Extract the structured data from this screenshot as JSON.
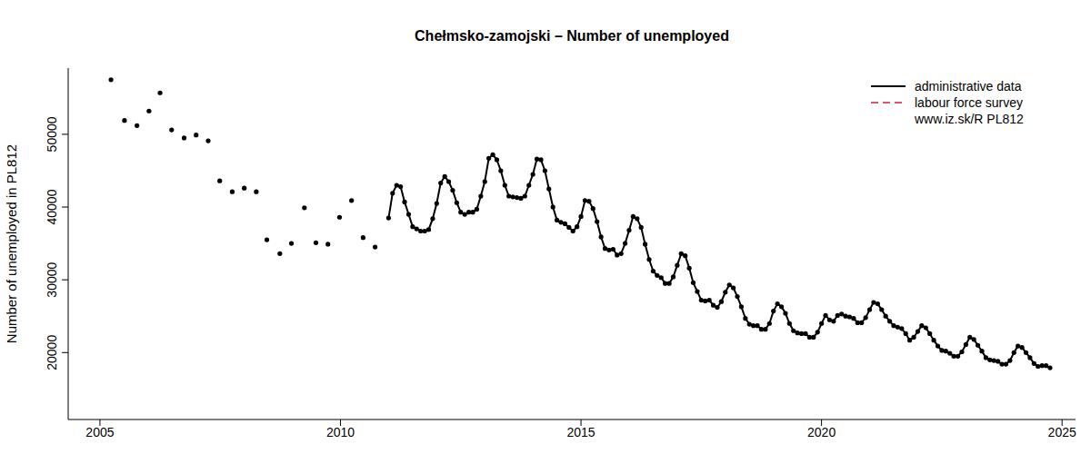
{
  "chart_data": {
    "type": "line",
    "title": "Chełmsko-zamojski – Number of unemployed",
    "y_label": "Number of unemployed in PL812",
    "annotation": "www.iz.sk/R PL812",
    "legend": "topright",
    "grid": false,
    "xlim": [
      2004.34,
      2025.28
    ],
    "xticks": [
      2005,
      2010,
      2015,
      2020,
      2025
    ],
    "ylim": [
      10800,
      59100
    ],
    "yticks": [
      20000,
      30000,
      40000,
      50000
    ],
    "x": [
      2005.23,
      2005.37,
      2005.51,
      2005.64,
      2005.77,
      2005.9,
      2006.02,
      2006.13,
      2006.25,
      2006.37,
      2006.49,
      2006.62,
      2006.75,
      2006.87,
      2007.0,
      2007.12,
      2007.25,
      2007.37,
      2007.49,
      2007.62,
      2007.75,
      2007.87,
      2008.0,
      2008.12,
      2008.25,
      2008.36,
      2008.47,
      2008.6,
      2008.74,
      2008.86,
      2008.98,
      2009.12,
      2009.25,
      2009.37,
      2009.49,
      2009.62,
      2009.74,
      2009.86,
      2009.98,
      2010.1,
      2010.23,
      2010.35,
      2010.47,
      2010.6,
      2010.72,
      2010.85,
      2011,
      2011.083,
      2011.167,
      2011.25,
      2011.333,
      2011.417,
      2011.5,
      2011.583,
      2011.667,
      2011.75,
      2011.833,
      2011.917,
      2012,
      2012.083,
      2012.167,
      2012.25,
      2012.333,
      2012.417,
      2012.5,
      2012.583,
      2012.667,
      2012.75,
      2012.833,
      2012.917,
      2013,
      2013.083,
      2013.167,
      2013.25,
      2013.333,
      2013.417,
      2013.5,
      2013.583,
      2013.667,
      2013.75,
      2013.833,
      2013.917,
      2014,
      2014.083,
      2014.167,
      2014.25,
      2014.333,
      2014.417,
      2014.5,
      2014.583,
      2014.667,
      2014.75,
      2014.833,
      2014.917,
      2015,
      2015.083,
      2015.167,
      2015.25,
      2015.333,
      2015.417,
      2015.5,
      2015.583,
      2015.667,
      2015.75,
      2015.833,
      2015.917,
      2016,
      2016.083,
      2016.167,
      2016.25,
      2016.333,
      2016.417,
      2016.5,
      2016.583,
      2016.667,
      2016.75,
      2016.833,
      2016.917,
      2017,
      2017.083,
      2017.167,
      2017.25,
      2017.333,
      2017.417,
      2017.5,
      2017.583,
      2017.667,
      2017.75,
      2017.833,
      2017.917,
      2018,
      2018.083,
      2018.167,
      2018.25,
      2018.333,
      2018.417,
      2018.5,
      2018.583,
      2018.667,
      2018.75,
      2018.833,
      2018.917,
      2019,
      2019.083,
      2019.167,
      2019.25,
      2019.333,
      2019.417,
      2019.5,
      2019.583,
      2019.667,
      2019.75,
      2019.833,
      2019.917,
      2020,
      2020.083,
      2020.167,
      2020.25,
      2020.333,
      2020.417,
      2020.5,
      2020.583,
      2020.667,
      2020.75,
      2020.833,
      2020.917,
      2021,
      2021.083,
      2021.167,
      2021.25,
      2021.333,
      2021.417,
      2021.5,
      2021.583,
      2021.667,
      2021.75,
      2021.833,
      2021.917,
      2022,
      2022.083,
      2022.167,
      2022.25,
      2022.333,
      2022.417,
      2022.5,
      2022.583,
      2022.667,
      2022.75,
      2022.833,
      2022.917,
      2023,
      2023.083,
      2023.167,
      2023.25,
      2023.333,
      2023.417,
      2023.5,
      2023.583,
      2023.667,
      2023.75,
      2023.833,
      2023.917,
      2024,
      2024.083,
      2024.167,
      2024.25,
      2024.333,
      2024.417,
      2024.5,
      2024.583,
      2024.667,
      2024.75
    ],
    "series": [
      {
        "name": "administrative data",
        "color": "#000000",
        "line_style": "solid",
        "marker": "circle",
        "values": [
          57500,
          null,
          51900,
          null,
          51200,
          null,
          53200,
          null,
          55700,
          null,
          50600,
          null,
          49500,
          null,
          49900,
          null,
          49100,
          null,
          43600,
          null,
          42100,
          null,
          42600,
          null,
          42100,
          null,
          35500,
          null,
          33600,
          null,
          35000,
          null,
          39900,
          null,
          35100,
          null,
          34900,
          null,
          38600,
          null,
          40900,
          null,
          35800,
          null,
          34500,
          null,
          38500,
          41900,
          43000,
          42800,
          40700,
          39000,
          37300,
          37000,
          36700,
          36700,
          36900,
          38400,
          40500,
          43300,
          44200,
          43500,
          42300,
          40600,
          39300,
          39000,
          39300,
          39300,
          39700,
          41500,
          43500,
          46700,
          47200,
          46500,
          45000,
          43000,
          41500,
          41400,
          41300,
          41200,
          41500,
          43000,
          44500,
          46600,
          46500,
          45000,
          42500,
          40000,
          38200,
          37900,
          37700,
          37200,
          36700,
          37300,
          38700,
          40900,
          40800,
          39800,
          38000,
          35900,
          34300,
          34100,
          34200,
          33400,
          33600,
          35000,
          36800,
          38700,
          38400,
          37200,
          34900,
          32800,
          31200,
          30600,
          30300,
          29500,
          29500,
          30400,
          32000,
          33600,
          33300,
          31600,
          29600,
          28400,
          27200,
          27100,
          27200,
          26500,
          26200,
          27000,
          28300,
          29300,
          28900,
          27700,
          26300,
          24700,
          23900,
          23700,
          23700,
          23200,
          23200,
          24000,
          25700,
          26700,
          26300,
          25400,
          24000,
          23000,
          22700,
          22600,
          22600,
          22100,
          22100,
          22800,
          24000,
          25100,
          24500,
          24300,
          25100,
          25300,
          25000,
          24900,
          24700,
          24100,
          24100,
          24800,
          25900,
          26900,
          26700,
          25900,
          25000,
          24300,
          23700,
          23500,
          23300,
          22600,
          21700,
          22100,
          22900,
          23700,
          23400,
          22600,
          21700,
          20900,
          20300,
          20200,
          19900,
          19500,
          19500,
          20100,
          21100,
          22100,
          21800,
          21000,
          20200,
          19300,
          19000,
          18900,
          18800,
          18400,
          18400,
          18900,
          20000,
          20900,
          20700,
          20000,
          19300,
          18500,
          18100,
          18200,
          18200,
          17900
        ]
      },
      {
        "name": "labour force survey",
        "color": "#df536b",
        "line_style": "dashed",
        "x": [],
        "values": []
      }
    ]
  }
}
